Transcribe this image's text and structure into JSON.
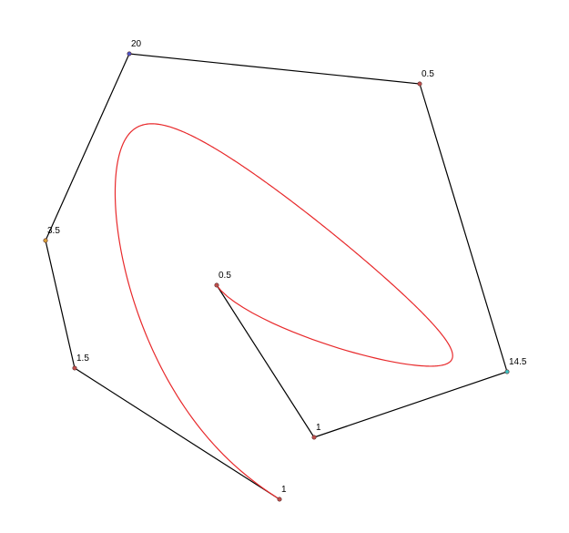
{
  "diagram": {
    "type": "rational-bezier-control-polygon",
    "colors": {
      "polygon": "#000000",
      "curve": "#e8292b",
      "point_default": "#c0504d"
    },
    "control_points": [
      {
        "id": "p0",
        "weight": "1",
        "color": "#c0504d"
      },
      {
        "id": "p1",
        "weight": "1.5",
        "color": "#c0504d"
      },
      {
        "id": "p2",
        "weight": "3.5",
        "color": "#d9a035"
      },
      {
        "id": "p3",
        "weight": "20",
        "color": "#4a55c8"
      },
      {
        "id": "p4",
        "weight": "0.5",
        "color": "#c0504d"
      },
      {
        "id": "p5",
        "weight": "14.5",
        "color": "#3bc4c4"
      },
      {
        "id": "p6",
        "weight": "1",
        "color": "#c0504d"
      },
      {
        "id": "p7",
        "weight": "0.5",
        "color": "#c0504d"
      }
    ]
  }
}
